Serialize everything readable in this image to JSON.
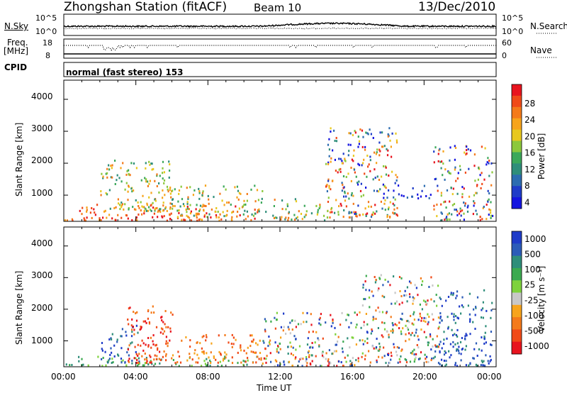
{
  "header": {
    "station": "Zhongshan Station (fitACF)",
    "beam": "Beam 10",
    "date": "13/Dec/2010"
  },
  "top_panels": {
    "nsky_label": "N.Sky",
    "nsky_ticks": [
      "10^5",
      "10^0"
    ],
    "nsearch_label": "N.Search",
    "nsearch_ticks": [
      "10^5",
      "10^0"
    ],
    "freq_label": "Freq.",
    "freq_unit": "[MHz]",
    "freq_ticks": [
      "18",
      "8"
    ],
    "nave_label": "Nave",
    "nave_ticks": [
      "60",
      "0"
    ],
    "cpid_label": "CPID",
    "cpid_text": "normal (fast stereo) 153"
  },
  "chart_data": [
    {
      "type": "heatmap",
      "panel": "power",
      "ylabel": "Slant Range [km]",
      "yticks": [
        "1000",
        "2000",
        "3000",
        "4000"
      ],
      "ylim": [
        180,
        4600
      ],
      "xlim": [
        0,
        24
      ],
      "colorbar_label": "Power [dB]",
      "colorbar_ticks": [
        "28",
        "24",
        "20",
        "16",
        "12",
        "8",
        "4"
      ],
      "colorbar_colors": [
        "#e8141e",
        "#f04a18",
        "#f47a1a",
        "#f7a41c",
        "#e8c81e",
        "#8cc83c",
        "#3ca85a",
        "#2f8e7a",
        "#2c6cb0",
        "#1f3cc8",
        "#1414e0"
      ],
      "echo_regions": [
        {
          "t0": 0.0,
          "t1": 10.8,
          "r0": 200,
          "r1": 700,
          "level": "high"
        },
        {
          "t0": 2.0,
          "t1": 6.0,
          "r0": 500,
          "r1": 2100,
          "level": "mid"
        },
        {
          "t0": 6.0,
          "t1": 11.0,
          "r0": 300,
          "r1": 1300,
          "level": "mid"
        },
        {
          "t0": 11.0,
          "t1": 14.5,
          "r0": 200,
          "r1": 900,
          "level": "mid"
        },
        {
          "t0": 14.5,
          "t1": 18.5,
          "r0": 300,
          "r1": 3100,
          "level": "mixed"
        },
        {
          "t0": 17.5,
          "t1": 20.5,
          "r0": 900,
          "r1": 1300,
          "level": "low"
        },
        {
          "t0": 20.5,
          "t1": 23.8,
          "r0": 200,
          "r1": 2600,
          "level": "mixed"
        }
      ]
    },
    {
      "type": "heatmap",
      "panel": "velocity",
      "ylabel": "Slant Range [km]",
      "yticks": [
        "1000",
        "2000",
        "3000",
        "4000"
      ],
      "ylim": [
        180,
        4600
      ],
      "xlim": [
        0,
        24
      ],
      "colorbar_label": "Velocity [m s⁻¹]",
      "colorbar_ticks": [
        "1000",
        "500",
        "100",
        "25",
        "-25",
        "-100",
        "-500",
        "-1000"
      ],
      "colorbar_colors": [
        "#1f3cc8",
        "#2c5cb8",
        "#2f8e7a",
        "#3caa50",
        "#7ed23c",
        "#c8c8c8",
        "#f7a41c",
        "#f47a1a",
        "#f04a18",
        "#e8141e"
      ],
      "echo_regions": [
        {
          "t0": 0.0,
          "t1": 10.8,
          "r0": 200,
          "r1": 500,
          "level": "green"
        },
        {
          "t0": 2.0,
          "t1": 4.2,
          "r0": 300,
          "r1": 1500,
          "level": "blue"
        },
        {
          "t0": 3.5,
          "t1": 6.0,
          "r0": 300,
          "r1": 2100,
          "level": "red"
        },
        {
          "t0": 6.0,
          "t1": 11.0,
          "r0": 300,
          "r1": 1200,
          "level": "orange"
        },
        {
          "t0": 11.0,
          "t1": 16.5,
          "r0": 200,
          "r1": 1900,
          "level": "mixed"
        },
        {
          "t0": 16.5,
          "t1": 20.8,
          "r0": 300,
          "r1": 3100,
          "level": "mixed"
        },
        {
          "t0": 20.8,
          "t1": 23.8,
          "r0": 200,
          "r1": 2600,
          "level": "blue"
        }
      ]
    }
  ],
  "x_axis": {
    "label": "Time UT",
    "ticks": [
      "00:00",
      "04:00",
      "08:00",
      "12:00",
      "16:00",
      "20:00",
      "00:00"
    ]
  }
}
